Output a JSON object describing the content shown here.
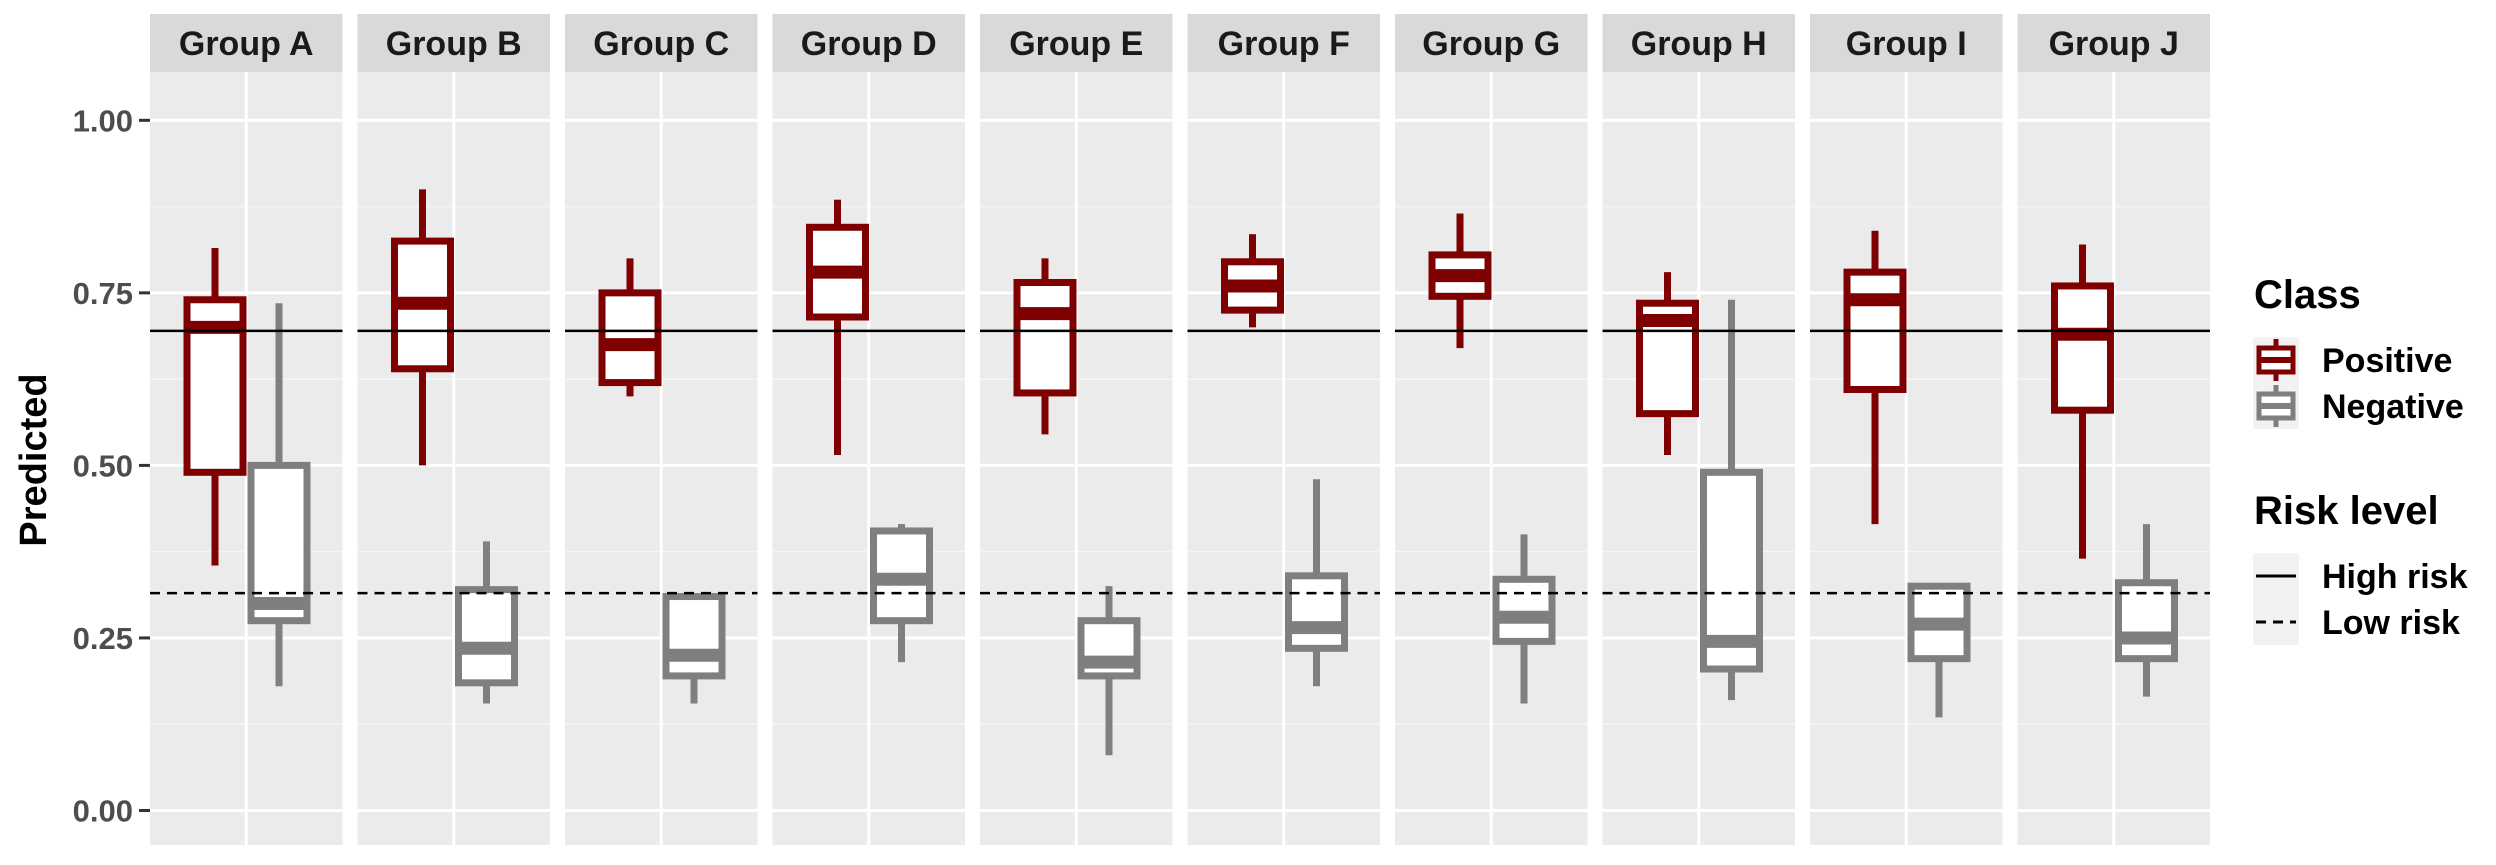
{
  "chart_data": {
    "type": "boxplot",
    "ylabel": "Predicted",
    "xlabel": "",
    "ylim": [
      -0.05,
      1.07
    ],
    "y_ticks": [
      "0.00",
      "0.25",
      "0.50",
      "0.75",
      "1.00"
    ],
    "y_tick_values": [
      0,
      0.25,
      0.5,
      0.75,
      1.0
    ],
    "facets": [
      "Group A",
      "Group B",
      "Group C",
      "Group D",
      "Group E",
      "Group F",
      "Group G",
      "Group H",
      "Group I",
      "Group J"
    ],
    "series": [
      {
        "name": "Positive",
        "color": "#7f0000",
        "boxes": [
          {
            "facet": "Group A",
            "min": 0.355,
            "q1": 0.49,
            "median": 0.7,
            "q3": 0.74,
            "max": 0.815
          },
          {
            "facet": "Group B",
            "min": 0.5,
            "q1": 0.64,
            "median": 0.735,
            "q3": 0.825,
            "max": 0.9
          },
          {
            "facet": "Group C",
            "min": 0.6,
            "q1": 0.62,
            "median": 0.675,
            "q3": 0.75,
            "max": 0.8
          },
          {
            "facet": "Group D",
            "min": 0.515,
            "q1": 0.715,
            "median": 0.78,
            "q3": 0.845,
            "max": 0.885
          },
          {
            "facet": "Group E",
            "min": 0.545,
            "q1": 0.605,
            "median": 0.72,
            "q3": 0.765,
            "max": 0.8
          },
          {
            "facet": "Group F",
            "min": 0.7,
            "q1": 0.725,
            "median": 0.76,
            "q3": 0.795,
            "max": 0.835
          },
          {
            "facet": "Group G",
            "min": 0.67,
            "q1": 0.745,
            "median": 0.775,
            "q3": 0.805,
            "max": 0.865
          },
          {
            "facet": "Group H",
            "min": 0.515,
            "q1": 0.575,
            "median": 0.71,
            "q3": 0.735,
            "max": 0.78
          },
          {
            "facet": "Group I",
            "min": 0.415,
            "q1": 0.61,
            "median": 0.74,
            "q3": 0.78,
            "max": 0.84
          },
          {
            "facet": "Group J",
            "min": 0.365,
            "q1": 0.58,
            "median": 0.69,
            "q3": 0.76,
            "max": 0.82
          }
        ]
      },
      {
        "name": "Negative",
        "color": "#7f7f7f",
        "boxes": [
          {
            "facet": "Group A",
            "min": 0.18,
            "q1": 0.275,
            "median": 0.3,
            "q3": 0.5,
            "max": 0.735
          },
          {
            "facet": "Group B",
            "min": 0.155,
            "q1": 0.185,
            "median": 0.235,
            "q3": 0.32,
            "max": 0.39
          },
          {
            "facet": "Group C",
            "min": 0.155,
            "q1": 0.195,
            "median": 0.225,
            "q3": 0.31,
            "max": 0.31
          },
          {
            "facet": "Group D",
            "min": 0.215,
            "q1": 0.275,
            "median": 0.335,
            "q3": 0.405,
            "max": 0.415
          },
          {
            "facet": "Group E",
            "min": 0.08,
            "q1": 0.195,
            "median": 0.215,
            "q3": 0.275,
            "max": 0.325
          },
          {
            "facet": "Group F",
            "min": 0.18,
            "q1": 0.235,
            "median": 0.265,
            "q3": 0.34,
            "max": 0.48
          },
          {
            "facet": "Group G",
            "min": 0.155,
            "q1": 0.245,
            "median": 0.28,
            "q3": 0.335,
            "max": 0.4
          },
          {
            "facet": "Group H",
            "min": 0.16,
            "q1": 0.205,
            "median": 0.245,
            "q3": 0.49,
            "max": 0.74
          },
          {
            "facet": "Group I",
            "min": 0.135,
            "q1": 0.22,
            "median": 0.27,
            "q3": 0.325,
            "max": 0.325
          },
          {
            "facet": "Group J",
            "min": 0.165,
            "q1": 0.22,
            "median": 0.25,
            "q3": 0.33,
            "max": 0.415
          }
        ]
      }
    ],
    "reference_lines": [
      {
        "name": "High risk",
        "y": 0.695,
        "style": "solid"
      },
      {
        "name": "Low risk",
        "y": 0.315,
        "style": "dashed"
      }
    ],
    "grid": true,
    "legend": {
      "position": "right",
      "class_title": "Class",
      "class_items": [
        "Positive",
        "Negative"
      ],
      "risk_title": "Risk level",
      "risk_items": [
        "High risk",
        "Low risk"
      ]
    }
  }
}
